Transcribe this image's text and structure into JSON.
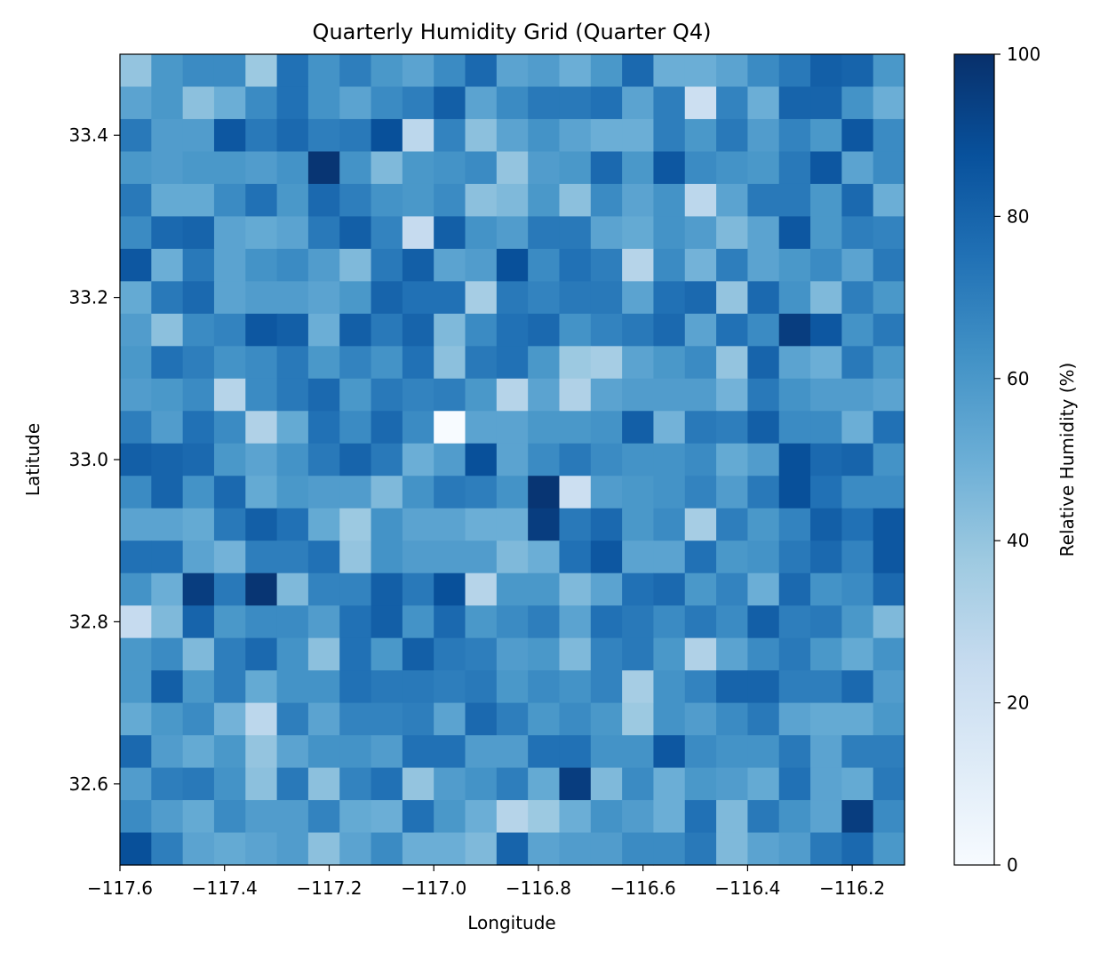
{
  "chart_data": {
    "type": "heatmap",
    "title": "Quarterly Humidity Grid (Quarter Q4)",
    "xlabel": "Longitude",
    "ylabel": "Latitude",
    "colorbar_label": "Relative Humidity (%)",
    "colormap": "Blues",
    "xlim": [
      -117.6,
      -116.1
    ],
    "ylim": [
      32.5,
      33.5
    ],
    "clim": [
      0,
      100
    ],
    "x_ticks": [
      -117.6,
      -117.4,
      -117.2,
      -117.0,
      -116.8,
      -116.6,
      -116.4,
      -116.2
    ],
    "x_tick_labels": [
      "−117.6",
      "−117.4",
      "−117.2",
      "−117.0",
      "−116.8",
      "−116.6",
      "−116.4",
      "−116.2"
    ],
    "y_ticks": [
      32.6,
      32.8,
      33.0,
      33.2,
      33.4
    ],
    "y_tick_labels": [
      "32.6",
      "32.8",
      "33.0",
      "33.2",
      "33.4"
    ],
    "colorbar_ticks": [
      0,
      20,
      40,
      60,
      80,
      100
    ],
    "colorbar_tick_labels": [
      "0",
      "20",
      "40",
      "60",
      "80",
      "100"
    ],
    "grid": false,
    "rows_order": "top_to_bottom",
    "values": [
      [
        40,
        60,
        65,
        65,
        38,
        75,
        62,
        70,
        60,
        55,
        65,
        78,
        55,
        58,
        50,
        60,
        78,
        50,
        50,
        55,
        65,
        72,
        82,
        80,
        60
      ],
      [
        55,
        60,
        42,
        50,
        65,
        75,
        62,
        55,
        65,
        70,
        82,
        55,
        65,
        72,
        72,
        75,
        55,
        70,
        22,
        68,
        50,
        80,
        80,
        62,
        50
      ],
      [
        72,
        58,
        58,
        85,
        72,
        78,
        70,
        72,
        88,
        28,
        68,
        42,
        55,
        62,
        55,
        50,
        50,
        70,
        60,
        72,
        58,
        68,
        60,
        85,
        65
      ],
      [
        60,
        58,
        60,
        60,
        58,
        62,
        98,
        62,
        45,
        60,
        62,
        65,
        40,
        58,
        60,
        78,
        60,
        85,
        65,
        62,
        60,
        72,
        85,
        55,
        65
      ],
      [
        72,
        52,
        52,
        65,
        75,
        60,
        78,
        70,
        62,
        60,
        65,
        42,
        45,
        60,
        42,
        65,
        55,
        62,
        28,
        55,
        72,
        72,
        60,
        78,
        50
      ],
      [
        65,
        78,
        80,
        55,
        52,
        55,
        72,
        82,
        68,
        25,
        82,
        62,
        58,
        72,
        72,
        55,
        52,
        62,
        58,
        45,
        55,
        85,
        60,
        70,
        68
      ],
      [
        85,
        50,
        72,
        55,
        62,
        65,
        58,
        45,
        72,
        82,
        55,
        58,
        88,
        65,
        75,
        70,
        30,
        65,
        48,
        70,
        55,
        60,
        65,
        55,
        72
      ],
      [
        52,
        72,
        78,
        55,
        58,
        58,
        55,
        60,
        80,
        75,
        75,
        35,
        72,
        68,
        72,
        72,
        55,
        75,
        78,
        40,
        78,
        62,
        45,
        70,
        60
      ],
      [
        58,
        42,
        65,
        68,
        85,
        82,
        50,
        82,
        72,
        80,
        45,
        65,
        75,
        78,
        62,
        68,
        72,
        78,
        55,
        75,
        65,
        95,
        85,
        62,
        72
      ],
      [
        60,
        75,
        70,
        62,
        65,
        72,
        60,
        68,
        62,
        75,
        42,
        72,
        75,
        60,
        38,
        35,
        55,
        60,
        65,
        40,
        80,
        55,
        50,
        72,
        60
      ],
      [
        58,
        60,
        65,
        30,
        65,
        72,
        78,
        60,
        72,
        68,
        70,
        60,
        30,
        55,
        32,
        55,
        58,
        58,
        58,
        48,
        72,
        62,
        58,
        58,
        55
      ],
      [
        70,
        58,
        75,
        65,
        32,
        52,
        75,
        65,
        78,
        65,
        0,
        55,
        55,
        60,
        60,
        62,
        82,
        48,
        72,
        70,
        82,
        65,
        65,
        50,
        75
      ],
      [
        82,
        80,
        78,
        60,
        55,
        62,
        72,
        80,
        72,
        50,
        58,
        88,
        55,
        65,
        72,
        65,
        62,
        62,
        65,
        52,
        58,
        88,
        78,
        80,
        62
      ],
      [
        65,
        80,
        62,
        78,
        52,
        60,
        58,
        58,
        45,
        62,
        72,
        70,
        62,
        98,
        22,
        58,
        60,
        62,
        68,
        58,
        72,
        88,
        75,
        65,
        65
      ],
      [
        55,
        55,
        52,
        72,
        82,
        75,
        52,
        38,
        62,
        55,
        55,
        50,
        50,
        95,
        72,
        78,
        60,
        65,
        35,
        70,
        60,
        68,
        82,
        75,
        85
      ],
      [
        75,
        75,
        55,
        48,
        70,
        70,
        75,
        40,
        62,
        58,
        58,
        58,
        45,
        50,
        75,
        85,
        55,
        55,
        75,
        60,
        62,
        72,
        78,
        68,
        85
      ],
      [
        62,
        50,
        95,
        72,
        98,
        45,
        68,
        68,
        82,
        72,
        88,
        30,
        60,
        60,
        45,
        55,
        75,
        78,
        60,
        68,
        50,
        78,
        62,
        65,
        78
      ],
      [
        25,
        45,
        80,
        60,
        65,
        65,
        58,
        75,
        82,
        62,
        78,
        60,
        65,
        70,
        55,
        75,
        72,
        65,
        72,
        65,
        82,
        70,
        72,
        60,
        45
      ],
      [
        60,
        65,
        45,
        70,
        78,
        62,
        42,
        75,
        60,
        82,
        72,
        70,
        58,
        60,
        45,
        68,
        72,
        60,
        32,
        55,
        65,
        72,
        60,
        52,
        62
      ],
      [
        60,
        82,
        60,
        70,
        52,
        62,
        62,
        75,
        72,
        72,
        70,
        72,
        60,
        65,
        62,
        68,
        35,
        62,
        68,
        80,
        80,
        70,
        70,
        78,
        58
      ],
      [
        52,
        60,
        65,
        48,
        28,
        70,
        55,
        68,
        68,
        70,
        55,
        78,
        70,
        60,
        65,
        60,
        38,
        62,
        58,
        65,
        72,
        55,
        52,
        52,
        60
      ],
      [
        78,
        58,
        52,
        60,
        40,
        55,
        62,
        62,
        58,
        75,
        75,
        58,
        58,
        75,
        75,
        62,
        62,
        85,
        65,
        62,
        62,
        72,
        55,
        70,
        70
      ],
      [
        58,
        70,
        72,
        62,
        42,
        72,
        42,
        68,
        75,
        40,
        58,
        62,
        70,
        52,
        95,
        45,
        65,
        50,
        60,
        58,
        52,
        75,
        55,
        52,
        72
      ],
      [
        65,
        58,
        52,
        65,
        58,
        58,
        68,
        52,
        50,
        75,
        60,
        50,
        30,
        38,
        50,
        62,
        58,
        50,
        75,
        45,
        72,
        62,
        55,
        95,
        65
      ],
      [
        88,
        70,
        55,
        52,
        55,
        58,
        42,
        55,
        65,
        50,
        50,
        45,
        80,
        55,
        58,
        58,
        65,
        65,
        72,
        45,
        55,
        58,
        72,
        78,
        60
      ]
    ]
  }
}
